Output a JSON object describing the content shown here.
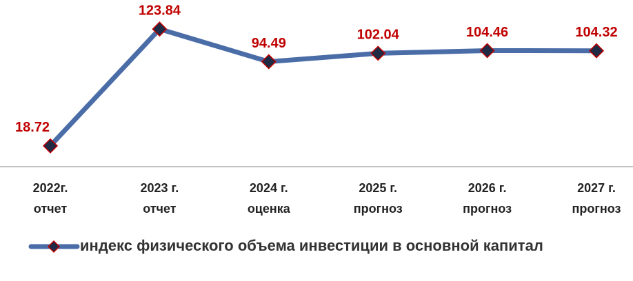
{
  "chart_data": {
    "type": "line",
    "categories": [
      "2022г.\nотчет",
      "2023 г.\nотчет",
      "2024 г.\nоценка",
      "2025 г.\nпрогноз",
      "2026 г.\nпрогноз",
      "2027 г.\nпрогноз"
    ],
    "series": [
      {
        "name": "индекс физического объема инвестиции в основной капитал",
        "color": "#4a6da7",
        "marker_color": "#1f2a44",
        "label_color": "#c00000",
        "values": [
          18.72,
          123.84,
          94.49,
          102.04,
          104.46,
          104.32
        ]
      }
    ],
    "ylim": [
      0,
      150
    ],
    "legend": "bottom"
  }
}
